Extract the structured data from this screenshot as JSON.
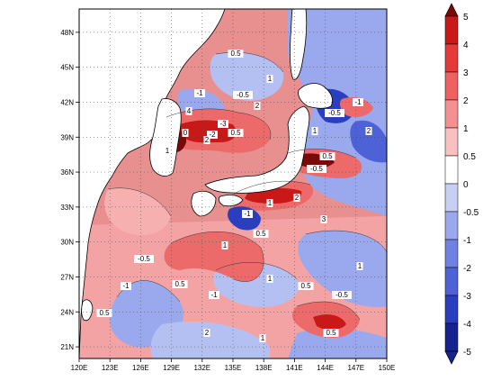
{
  "map": {
    "lon_range": [
      120,
      150
    ],
    "lat_range": [
      20,
      50
    ],
    "x_ticks": [
      "120E",
      "123E",
      "126E",
      "129E",
      "132E",
      "135E",
      "138E",
      "141E",
      "144E",
      "147E",
      "150E"
    ],
    "y_ticks": [
      "21N",
      "24N",
      "27N",
      "30N",
      "33N",
      "36N",
      "39N",
      "42N",
      "45N",
      "48N"
    ],
    "gridlines": true,
    "gridline_style": "dotted",
    "contour_labels": [
      "0.5",
      "1",
      "-0.5",
      "-1",
      "2",
      "4",
      "-2",
      "-3",
      "0",
      "1",
      "2",
      "0.5",
      "1",
      "-0.5",
      "-1",
      "2",
      "0.5",
      "-0.5",
      "1",
      "-1",
      "0.5",
      "2",
      "3",
      "1",
      "-0.5",
      "-1",
      "0.5",
      "0.5",
      "-1",
      "1",
      "0.5",
      "-0.5",
      "1",
      "2",
      "1",
      "0.5"
    ],
    "land_color": "#ffffff",
    "coastline_color": "#000000"
  },
  "colorbar": {
    "levels": [
      "5",
      "4",
      "3",
      "2",
      "1",
      "0.5",
      "0",
      "-0.5",
      "-1",
      "-2",
      "-3",
      "-4",
      "-5"
    ],
    "colors": [
      "#7a0a0a",
      "#c81818",
      "#e63a3a",
      "#f06060",
      "#f59090",
      "#f8c0c0",
      "#ffffff",
      "#c8cff5",
      "#9aa8ee",
      "#6f82e3",
      "#4c62d6",
      "#2a3ec0",
      "#14238f"
    ]
  },
  "palette": {
    "neg_strong": "#2233bb",
    "neg_mid": "#6f82e3",
    "neg_light": "#b5c0f2",
    "pos_light": "#f6b0b0",
    "pos_mid": "#ec6a6a",
    "pos_strong": "#c81818",
    "pos_dark": "#7a0a0a"
  }
}
